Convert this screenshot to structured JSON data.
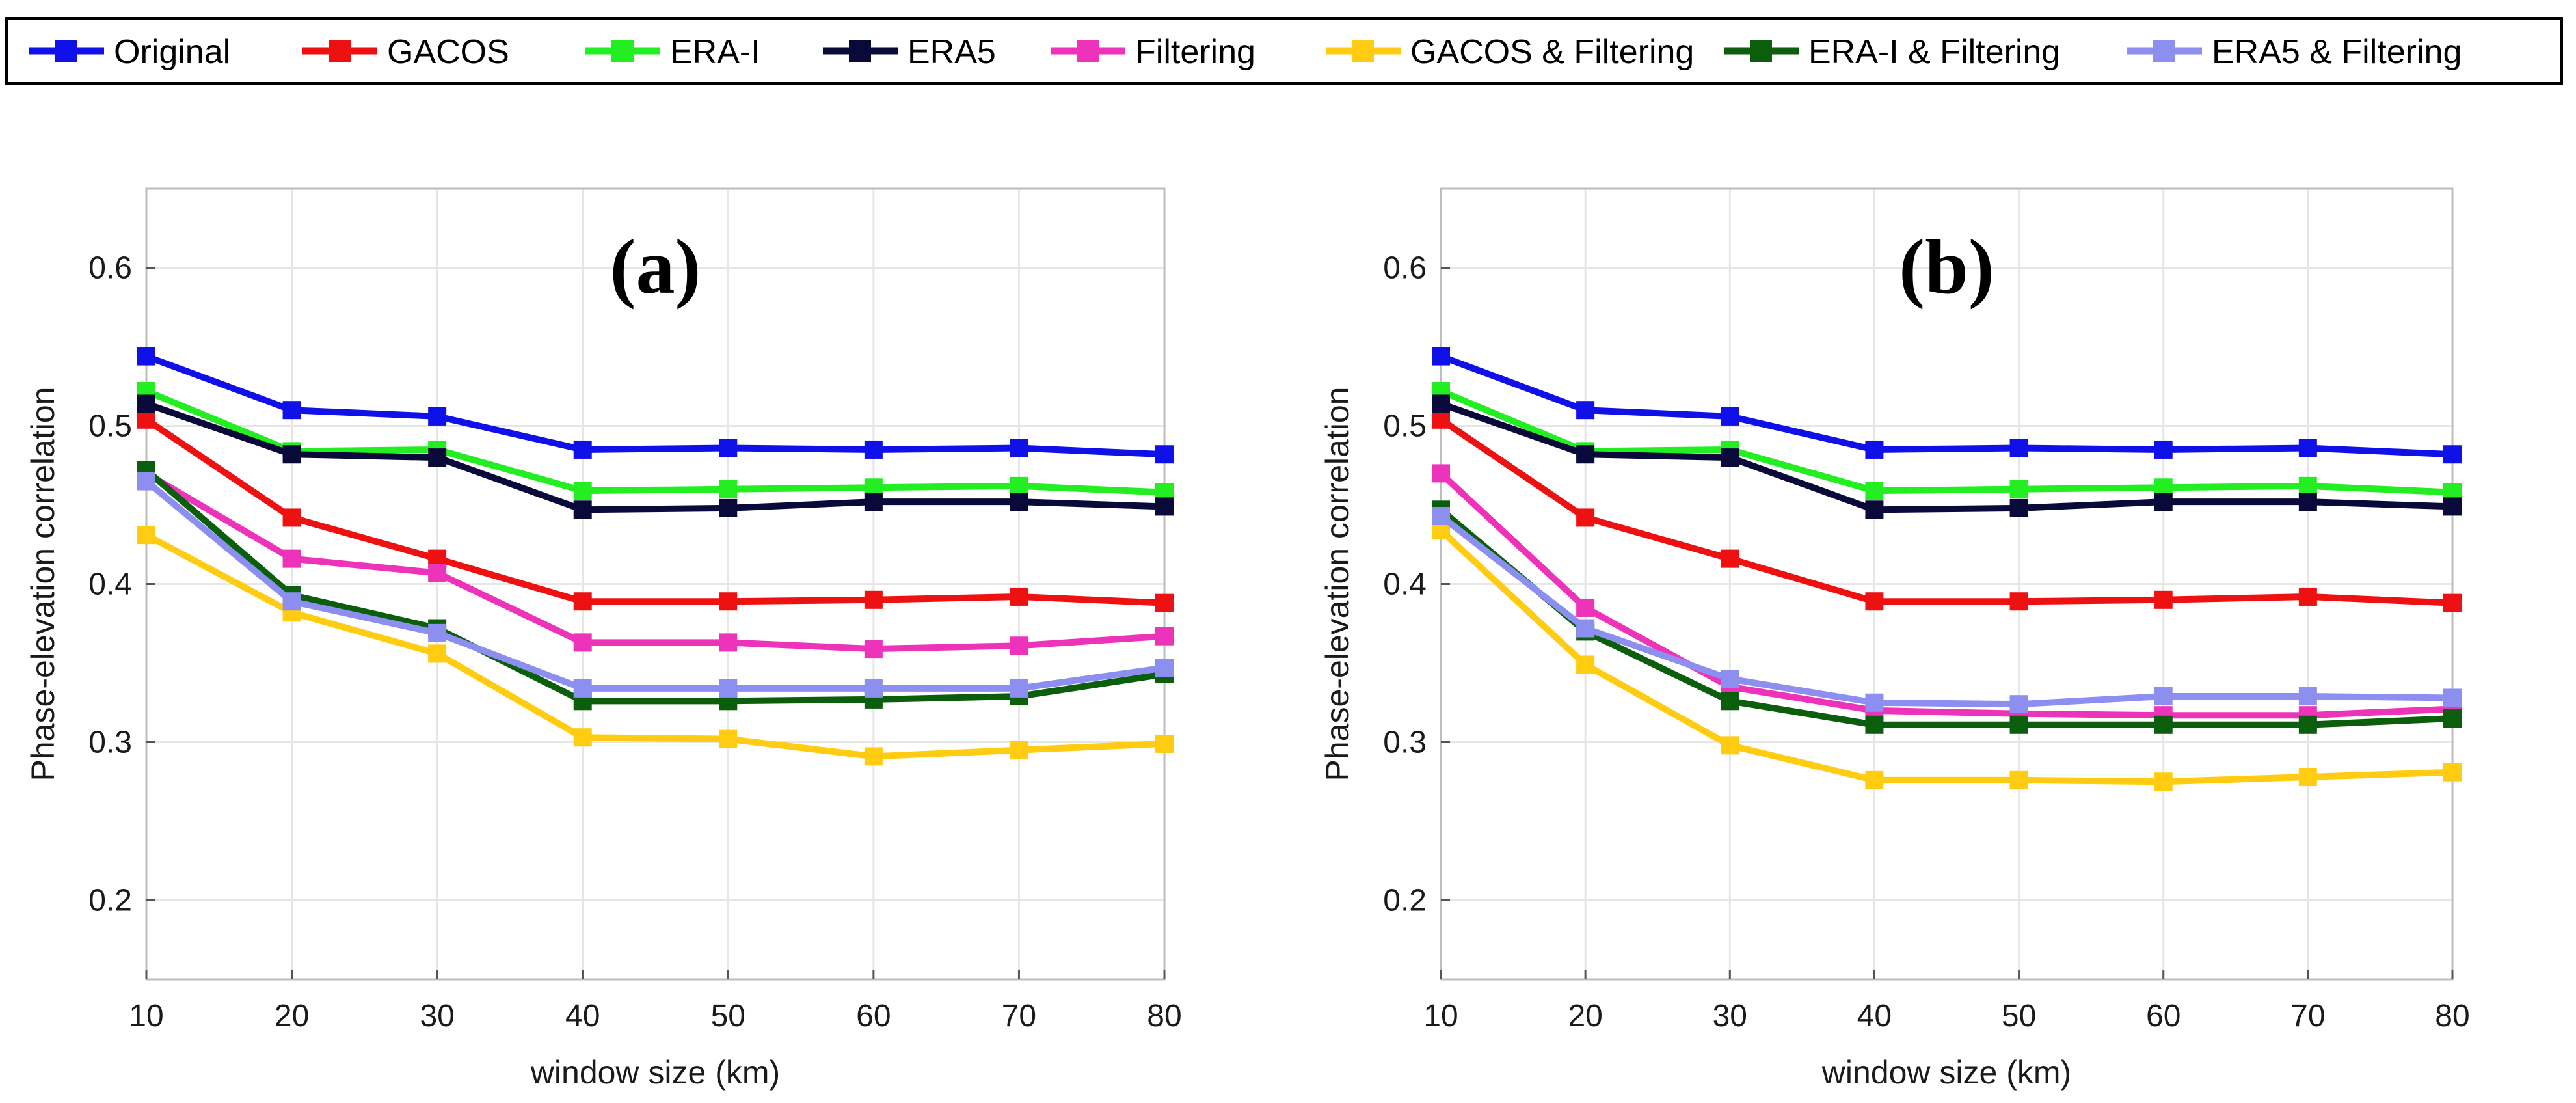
{
  "legend": [
    {
      "name": "Original",
      "color": "#1010e8"
    },
    {
      "name": "GACOS",
      "color": "#ee1111"
    },
    {
      "name": "ERA-I",
      "color": "#22ee22"
    },
    {
      "name": "ERA5",
      "color": "#0a0a3a"
    },
    {
      "name": "Filtering",
      "color": "#ee33bb"
    },
    {
      "name": "GACOS & Filtering",
      "color": "#ffcc11"
    },
    {
      "name": "ERA-I & Filtering",
      "color": "#0b5e0b"
    },
    {
      "name": "ERA5 & Filtering",
      "color": "#8c8ef0"
    }
  ],
  "chart_data": [
    {
      "type": "line",
      "title": "(a)",
      "xlabel": "window size (km)",
      "ylabel": "Phase-elevation correlation",
      "x": [
        10,
        20,
        30,
        40,
        50,
        60,
        70,
        80
      ],
      "xlim": [
        10,
        80
      ],
      "ylim": [
        0.15,
        0.65
      ],
      "yticks": [
        "0.2",
        "0.3",
        "0.4",
        "0.5",
        "0.6"
      ],
      "xticks": [
        "10",
        "20",
        "30",
        "40",
        "50",
        "60",
        "70",
        "80"
      ],
      "grid": true,
      "series": [
        {
          "name": "Original",
          "values": [
            0.544,
            0.51,
            0.506,
            0.485,
            0.486,
            0.485,
            0.486,
            0.482
          ]
        },
        {
          "name": "GACOS",
          "values": [
            0.504,
            0.442,
            0.416,
            0.389,
            0.389,
            0.39,
            0.392,
            0.388
          ]
        },
        {
          "name": "ERA-I",
          "values": [
            0.522,
            0.484,
            0.485,
            0.459,
            0.46,
            0.461,
            0.462,
            0.458
          ]
        },
        {
          "name": "ERA5",
          "values": [
            0.514,
            0.482,
            0.48,
            0.447,
            0.448,
            0.452,
            0.452,
            0.449
          ]
        },
        {
          "name": "Filtering",
          "values": [
            0.47,
            0.416,
            0.407,
            0.363,
            0.363,
            0.359,
            0.361,
            0.367
          ]
        },
        {
          "name": "GACOS & Filtering",
          "values": [
            0.431,
            0.382,
            0.356,
            0.303,
            0.302,
            0.291,
            0.295,
            0.299
          ]
        },
        {
          "name": "ERA-I & Filtering",
          "values": [
            0.472,
            0.393,
            0.372,
            0.326,
            0.326,
            0.327,
            0.329,
            0.343
          ]
        },
        {
          "name": "ERA5 & Filtering",
          "values": [
            0.465,
            0.389,
            0.369,
            0.334,
            0.334,
            0.334,
            0.334,
            0.347
          ]
        }
      ]
    },
    {
      "type": "line",
      "title": "(b)",
      "xlabel": "window size (km)",
      "ylabel": "Phase-elevation correlation",
      "x": [
        10,
        20,
        30,
        40,
        50,
        60,
        70,
        80
      ],
      "xlim": [
        10,
        80
      ],
      "ylim": [
        0.15,
        0.65
      ],
      "yticks": [
        "0.2",
        "0.3",
        "0.4",
        "0.5",
        "0.6"
      ],
      "xticks": [
        "10",
        "20",
        "30",
        "40",
        "50",
        "60",
        "70",
        "80"
      ],
      "grid": true,
      "series": [
        {
          "name": "Original",
          "values": [
            0.544,
            0.51,
            0.506,
            0.485,
            0.486,
            0.485,
            0.486,
            0.482
          ]
        },
        {
          "name": "GACOS",
          "values": [
            0.504,
            0.442,
            0.416,
            0.389,
            0.389,
            0.39,
            0.392,
            0.388
          ]
        },
        {
          "name": "ERA-I",
          "values": [
            0.522,
            0.484,
            0.485,
            0.459,
            0.46,
            0.461,
            0.462,
            0.458
          ]
        },
        {
          "name": "ERA5",
          "values": [
            0.514,
            0.482,
            0.48,
            0.447,
            0.448,
            0.452,
            0.452,
            0.449
          ]
        },
        {
          "name": "Filtering",
          "values": [
            0.47,
            0.385,
            0.335,
            0.32,
            0.318,
            0.317,
            0.317,
            0.321
          ]
        },
        {
          "name": "GACOS & Filtering",
          "values": [
            0.434,
            0.349,
            0.298,
            0.276,
            0.276,
            0.275,
            0.278,
            0.281
          ]
        },
        {
          "name": "ERA-I & Filtering",
          "values": [
            0.447,
            0.37,
            0.326,
            0.311,
            0.311,
            0.311,
            0.311,
            0.315
          ]
        },
        {
          "name": "ERA5 & Filtering",
          "values": [
            0.443,
            0.372,
            0.34,
            0.325,
            0.324,
            0.329,
            0.329,
            0.328
          ]
        }
      ]
    }
  ]
}
